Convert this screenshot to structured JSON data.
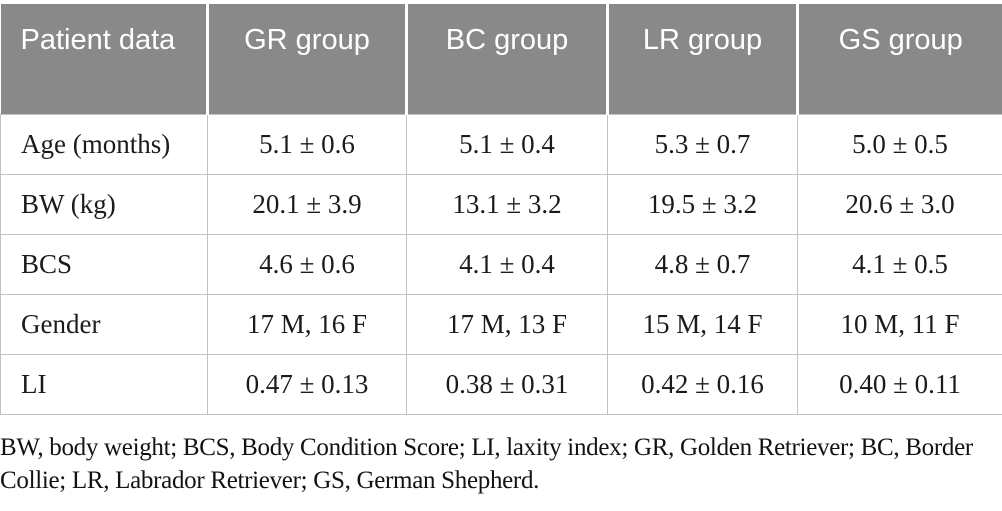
{
  "table": {
    "columns": [
      {
        "label": "Patient data"
      },
      {
        "label": "GR group"
      },
      {
        "label": "BC group"
      },
      {
        "label": "LR group"
      },
      {
        "label": "GS group"
      }
    ],
    "rows": [
      {
        "label": "Age (months)",
        "values": [
          "5.1 ± 0.6",
          "5.1 ± 0.4",
          "5.3 ± 0.7",
          "5.0 ± 0.5"
        ]
      },
      {
        "label": "BW (kg)",
        "values": [
          "20.1 ± 3.9",
          "13.1 ± 3.2",
          "19.5 ± 3.2",
          "20.6 ± 3.0"
        ]
      },
      {
        "label": "BCS",
        "values": [
          "4.6 ± 0.6",
          "4.1 ± 0.4",
          "4.8 ± 0.7",
          "4.1 ± 0.5"
        ]
      },
      {
        "label": "Gender",
        "values": [
          "17 M, 16 F",
          "17 M, 13 F",
          "15 M, 14 F",
          "10 M, 11 F"
        ]
      },
      {
        "label": "LI",
        "values": [
          "0.47 ± 0.13",
          "0.38 ± 0.31",
          "0.42 ± 0.16",
          "0.40 ± 0.11"
        ]
      }
    ],
    "footnote": "BW, body weight; BCS, Body Condition Score; LI, laxity index; GR, Golden Retriever; BC, Border Collie; LR, Labrador Retriever; GS, German Shepherd."
  },
  "colors": {
    "header_bg": "#898989",
    "header_text": "#ffffff",
    "body_text": "#1b1b1b",
    "grid_line": "#c3c3c3"
  }
}
